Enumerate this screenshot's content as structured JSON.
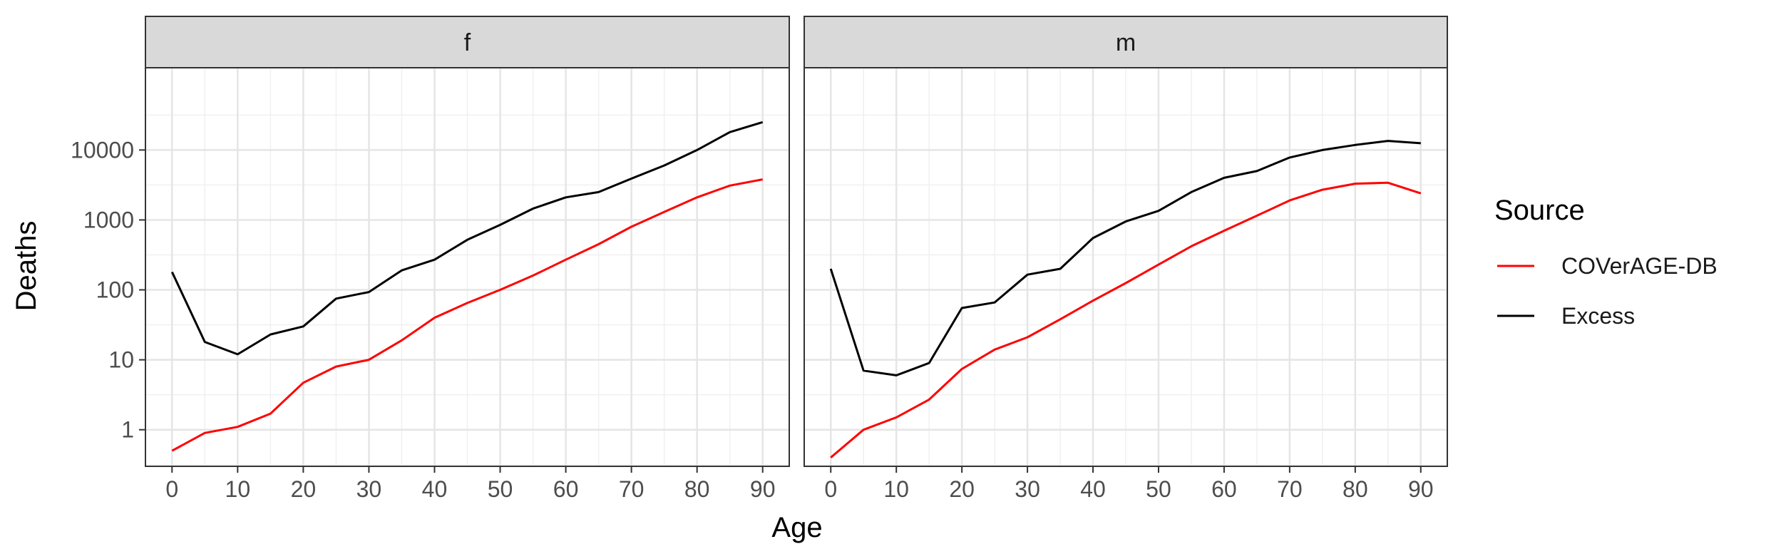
{
  "chart_data": {
    "type": "line",
    "facet_variable": "Sex",
    "xlabel": "Age",
    "ylabel": "Deaths",
    "scale_y": "log10",
    "xlim": [
      0,
      90
    ],
    "ylim": [
      0.3,
      150000
    ],
    "x_ticks": [
      0,
      10,
      20,
      30,
      40,
      50,
      60,
      70,
      80,
      90
    ],
    "y_ticks": [
      1,
      10,
      100,
      1000,
      10000
    ],
    "y_tick_labels": [
      "1",
      "10",
      "100",
      "1000",
      "10000"
    ],
    "grid": true,
    "legend": {
      "title": "Source",
      "position": "right",
      "entries": [
        {
          "name": "COVerAGE-DB",
          "color": "#ff0000"
        },
        {
          "name": "Excess",
          "color": "#000000"
        }
      ]
    },
    "x": [
      0,
      5,
      10,
      15,
      20,
      25,
      30,
      35,
      40,
      45,
      50,
      55,
      60,
      65,
      70,
      75,
      80,
      85,
      90
    ],
    "panels": [
      {
        "label": "f",
        "series": [
          {
            "name": "COVerAGE-DB",
            "color": "#ff0000",
            "values": [
              0.5,
              0.9,
              1.1,
              1.7,
              4.7,
              8,
              10,
              19,
              40,
              65,
              100,
              160,
              270,
              450,
              800,
              1300,
              2100,
              3100,
              3800
            ]
          },
          {
            "name": "Excess",
            "color": "#000000",
            "values": [
              180,
              18,
              12,
              23,
              30,
              75,
              93,
              190,
              270,
              520,
              850,
              1450,
              2100,
              2500,
              3900,
              6000,
              10000,
              18000,
              25000
            ]
          }
        ]
      },
      {
        "label": "m",
        "series": [
          {
            "name": "COVerAGE-DB",
            "color": "#ff0000",
            "values": [
              0.4,
              1,
              1.5,
              2.7,
              7.4,
              14,
              21,
              38,
              70,
              125,
              230,
              420,
              700,
              1150,
              1900,
              2700,
              3300,
              3400,
              2400
            ]
          },
          {
            "name": "Excess",
            "color": "#000000",
            "values": [
              200,
              7,
              6,
              9,
              55,
              66,
              165,
              200,
              550,
              950,
              1350,
              2500,
              4000,
              5000,
              7800,
              10000,
              11800,
              13500,
              12500
            ]
          }
        ]
      }
    ]
  }
}
